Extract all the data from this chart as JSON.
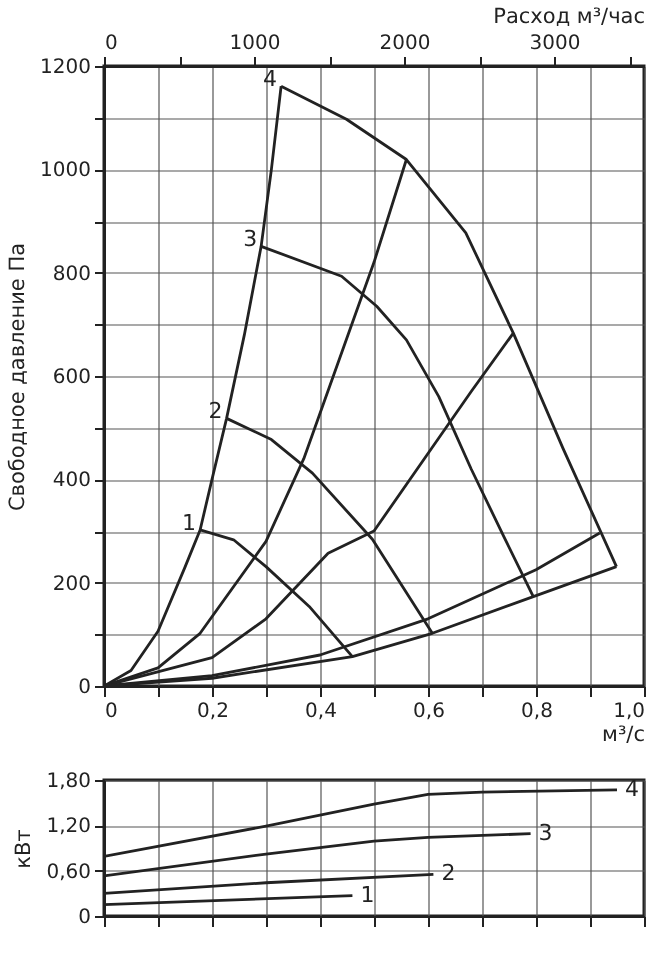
{
  "chart_data": [
    {
      "type": "line",
      "ylabel": "Свободное давление Па",
      "xlabel": "м³/с",
      "x2label": "Расход м³/час",
      "xlim": [
        0,
        1
      ],
      "xticks": [
        0,
        {
          "value": 0.1,
          "label": null
        },
        {
          "value": 0.2,
          "label": "0,2"
        },
        {
          "value": 0.3,
          "label": null
        },
        {
          "value": 0.4,
          "label": "0,4"
        },
        {
          "value": 0.5,
          "label": null
        },
        {
          "value": 0.6,
          "label": "0,6"
        },
        {
          "value": 0.7,
          "label": null
        },
        {
          "value": 0.8,
          "label": "0,8"
        },
        {
          "value": 0.9,
          "label": null
        },
        {
          "value": 1,
          "label": "1,0"
        }
      ],
      "ylim": [
        0,
        1200
      ],
      "yticks": [
        0,
        {
          "value": 100,
          "label": null
        },
        200,
        {
          "value": 300,
          "label": null
        },
        400,
        {
          "value": 500,
          "label": null
        },
        600,
        {
          "value": 700,
          "label": null
        },
        800,
        {
          "value": 900,
          "label": null
        },
        1000,
        {
          "value": 1100,
          "label": null
        },
        1200
      ],
      "x2lim": [
        0,
        3600
      ],
      "x2ticks": [
        0,
        {
          "value": 500,
          "label": null
        },
        1000,
        {
          "value": 1500,
          "label": null
        },
        2000,
        {
          "value": 2500,
          "label": null
        },
        3000,
        {
          "value": 3500,
          "label": null
        }
      ],
      "grid": true,
      "series": [
        {
          "color": "#222222",
          "x": [
            0,
            0.05,
            0.1,
            0.15,
            0.178,
            0.2,
            0.227,
            0.26,
            0.291,
            0.31,
            0.328
          ],
          "values": [
            0,
            30,
            106,
            230,
            302,
            400,
            518,
            680,
            851,
            1000,
            1161
          ]
        },
        {
          "color": "#222222",
          "x": [
            0,
            0.1,
            0.178,
            0.3,
            0.37,
            0.449,
            0.5,
            0.56
          ],
          "values": [
            0,
            35,
            102,
            280,
            440,
            671,
            820,
            1019
          ]
        },
        {
          "color": "#222222",
          "x": [
            0,
            0.2,
            0.3,
            0.415,
            0.5,
            0.6,
            0.68,
            0.758
          ],
          "values": [
            0,
            55,
            130,
            257,
            300,
            450,
            570,
            683
          ]
        },
        {
          "color": "#222222",
          "x": [
            0,
            0.2,
            0.4,
            0.6,
            0.8,
            0.918
          ],
          "values": [
            0,
            20,
            60,
            130,
            225,
            296
          ]
        },
        {
          "color": "#222222",
          "x": [
            0,
            0.2,
            0.46,
            0.608,
            0.795,
            0.949
          ],
          "values": [
            0,
            15,
            57,
            102,
            173,
            231
          ]
        },
        {
          "name": "4",
          "color": "#222222",
          "x": [
            0.328,
            0.449,
            0.56,
            0.67,
            0.758,
            0.85,
            0.949
          ],
          "values": [
            1161,
            1097,
            1019,
            877,
            683,
            460,
            231
          ]
        },
        {
          "name": "3",
          "color": "#222222",
          "x": [
            0.291,
            0.44,
            0.505,
            0.56,
            0.62,
            0.68,
            0.74,
            0.795
          ],
          "values": [
            851,
            793,
            735,
            670,
            560,
            420,
            290,
            173
          ]
        },
        {
          "name": "2",
          "color": "#222222",
          "x": [
            0.227,
            0.31,
            0.386,
            0.497,
            0.608
          ],
          "values": [
            518,
            477,
            412,
            284,
            102
          ]
        },
        {
          "name": "1",
          "color": "#222222",
          "x": [
            0.178,
            0.24,
            0.3,
            0.38,
            0.46
          ],
          "values": [
            302,
            283,
            231,
            154,
            57
          ]
        }
      ]
    },
    {
      "type": "line",
      "ylabel": "кВт",
      "xlim": [
        0,
        1
      ],
      "xticks": [
        0,
        0.1,
        0.2,
        0.3,
        0.4,
        0.5,
        0.6,
        0.7,
        0.8,
        0.9,
        1
      ],
      "ylim": [
        0,
        1.8
      ],
      "yticks": [
        0,
        {
          "value": 0.6,
          "label": "0,60"
        },
        {
          "value": 1.2,
          "label": "1,20"
        },
        {
          "value": 1.8,
          "label": "1,80"
        }
      ],
      "tick_labels": "y",
      "grid": true,
      "series": [
        {
          "name": "4",
          "color": "#222222",
          "x": [
            0,
            0.3,
            0.5,
            0.6,
            0.7,
            0.95
          ],
          "values": [
            0.79,
            1.19,
            1.48,
            1.61,
            1.64,
            1.67
          ]
        },
        {
          "name": "3",
          "color": "#222222",
          "x": [
            0,
            0.3,
            0.5,
            0.6,
            0.79
          ],
          "values": [
            0.53,
            0.82,
            0.99,
            1.04,
            1.09
          ]
        },
        {
          "name": "2",
          "color": "#222222",
          "x": [
            0,
            0.3,
            0.61
          ],
          "values": [
            0.3,
            0.44,
            0.55
          ]
        },
        {
          "name": "1",
          "color": "#222222",
          "x": [
            0,
            0.46
          ],
          "values": [
            0.15,
            0.27
          ]
        }
      ]
    }
  ]
}
